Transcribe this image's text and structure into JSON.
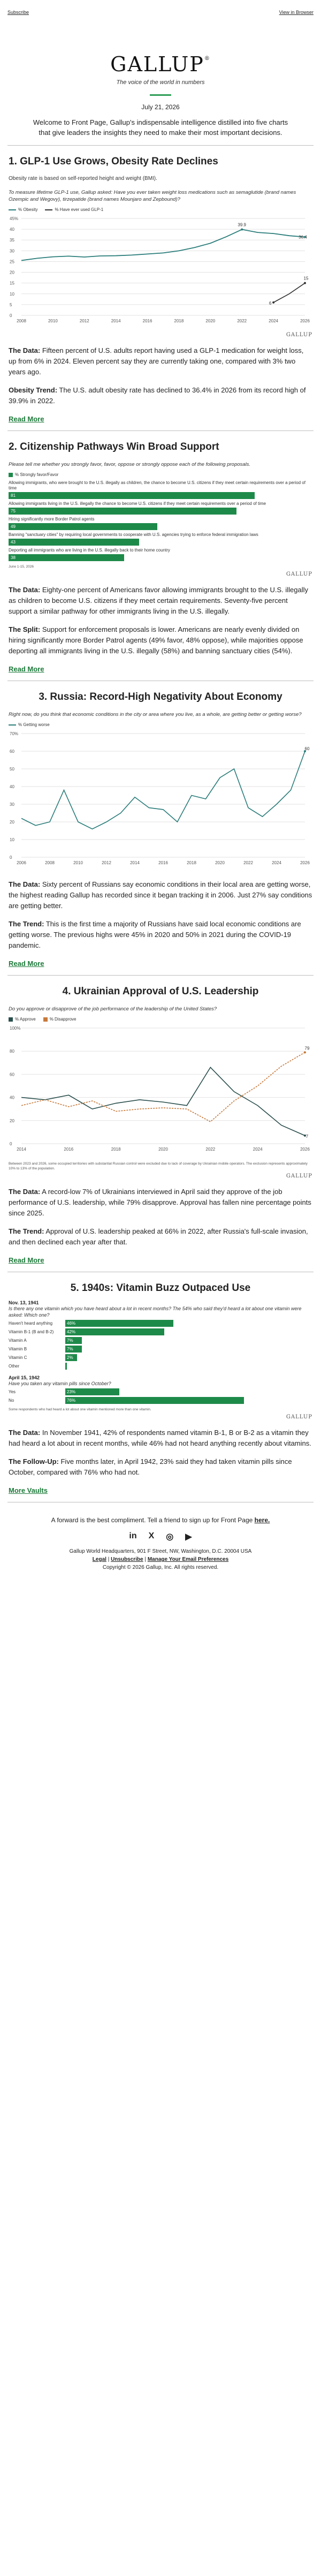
{
  "topbar": {
    "subscribe": "Subscribe",
    "view_browser": "View in Browser"
  },
  "masthead": {
    "logo": "GALLUP",
    "logo_mark": "®",
    "tagline": "The voice of the world in numbers"
  },
  "date": "July 21, 2026",
  "intro": "Welcome to Front Page, Gallup's indispensable intelligence distilled into five charts that give leaders the insights they need to make their most important decisions.",
  "s1": {
    "title": "1. GLP-1 Use Grows, Obesity Rate Declines",
    "subtitle": "Obesity rate is based on self-reported height and weight (BMI).",
    "question": "To measure lifetime GLP-1 use, Gallup asked: Have you ever taken weight loss medications such as semaglutide (brand names Ozempic and Wegovy), tirzepatide (brand names Mounjaro and Zepbound)?",
    "legend": [
      "% Obesity",
      "% Have ever used GLP-1"
    ],
    "para1_lead": "The Data:",
    "para1": " Fifteen percent of U.S. adults report having used a GLP-1 medication for weight loss, up from 6% in 2024. Eleven percent say they are currently taking one, compared with 3% two years ago.",
    "para2_lead": "Obesity Trend:",
    "para2": " The U.S. adult obesity rate has declined to 36.4% in 2026 from its record high of 39.9% in 2022.",
    "readmore": "Read More"
  },
  "s2": {
    "title": "2. Citizenship Pathways Win Broad Support",
    "question": "Please tell me whether you strongly favor, favor, oppose or strongly oppose each of the following proposals.",
    "legend": "% Strongly favor/Favor",
    "items": [
      {
        "label": "Allowing immigrants, who were brought to the U.S. illegally as children, the chance to become U.S. citizens if they meet certain requirements over a period of time",
        "value": "81",
        "frac": 0.81
      },
      {
        "label": "Allowing immigrants living in the U.S. illegally the chance to become U.S. citizens if they meet certain requirements over a period of time",
        "value": "75",
        "frac": 0.75
      },
      {
        "label": "Hiring significantly more Border Patrol agents",
        "value": "49",
        "frac": 0.49
      },
      {
        "label": "Banning \"sanctuary cities\" by requiring local governments to cooperate with U.S. agencies trying to enforce federal immigration laws",
        "value": "43",
        "frac": 0.43
      },
      {
        "label": "Deporting all immigrants who are living in the U.S. illegally back to their home country",
        "value": "38",
        "frac": 0.38
      }
    ],
    "source": "June 1-15, 2026",
    "para1_lead": "The Data:",
    "para1": " Eighty-one percent of Americans favor allowing immigrants brought to the U.S. illegally as children to become U.S. citizens if they meet certain requirements. Seventy-five percent support a similar pathway for other immigrants living in the U.S. illegally.",
    "para2_lead": "The Split:",
    "para2": " Support for enforcement proposals is lower. Americans are nearly evenly divided on hiring significantly more Border Patrol agents (49% favor, 48% oppose), while majorities oppose deporting all immigrants living in the U.S. illegally (58%) and banning sanctuary cities (54%).",
    "readmore": "Read More"
  },
  "s3": {
    "title": "3. Russia: Record-High Negativity About Economy",
    "question": "Right now, do you think that economic conditions in the city or area where you live, as a whole, are getting better or getting worse?",
    "legend": "% Getting worse",
    "para1_lead": "The Data:",
    "para1": " Sixty percent of Russians say economic conditions in their local area are getting worse, the highest reading Gallup has recorded since it began tracking it in 2006. Just 27% say conditions are getting better.",
    "para2_lead": "The Trend:",
    "para2": " This is the first time a majority of Russians have said local economic conditions are getting worse. The previous highs were 45% in 2020 and 50% in 2021 during the COVID-19 pandemic.",
    "readmore": "Read More"
  },
  "s4": {
    "title": "4. Ukrainian Approval of U.S. Leadership",
    "question": "Do you approve or disapprove of the job performance of the leadership of the United States?",
    "legend": [
      "% Approve",
      "% Disapprove"
    ],
    "footnote": "Between 2023 and 2026, some occupied territories with substantial Russian control were excluded due to lack of coverage by Ukrainian mobile operators. The exclusion represents approximately 10% to 13% of the population.",
    "para1_lead": "The Data:",
    "para1": " A record-low 7% of Ukrainians interviewed in April said they approve of the job performance of U.S. leadership, while 79% disapprove. Approval has fallen nine percentage points since 2025.",
    "para2_lead": "The Trend:",
    "para2": " Approval of U.S. leadership peaked at 66% in 2022, after Russia's full-scale invasion, and then declined each year after that.",
    "readmore": "Read More"
  },
  "s5": {
    "title": "5. 1940s: Vitamin Buzz Outpaced Use",
    "poll1_date": "Nov. 13, 1941",
    "poll1_q": "Is there any one vitamin which you have heard about a lot in recent months? The 54% who said they'd heard a lot about one vitamin were asked: Which one?",
    "poll1": [
      {
        "label": "Haven't heard anything",
        "value": "46%",
        "frac": 0.46
      },
      {
        "label": "Vitamin B-1 (B and B-2)",
        "value": "42%",
        "frac": 0.42
      },
      {
        "label": "Vitamin A",
        "value": "7%",
        "frac": 0.07
      },
      {
        "label": "Vitamin B",
        "value": "7%",
        "frac": 0.07
      },
      {
        "label": "Vitamin C",
        "value": "2%",
        "frac": 0.02
      },
      {
        "label": "Other",
        "value": "",
        "frac": 0.0
      }
    ],
    "poll2_date": "April 15, 1942",
    "poll2_q": "Have you taken any vitamin pills since October?",
    "poll2": [
      {
        "label": "Yes",
        "value": "23%",
        "frac": 0.23
      },
      {
        "label": "No",
        "value": "76%",
        "frac": 0.76
      }
    ],
    "footnote": "Some respondents who had heard a lot about one vitamin mentioned more than one vitamin.",
    "para1_lead": "The Data:",
    "para1": " In November 1941, 42% of respondents named vitamin B-1, B or B-2 as a vitamin they had heard a lot about in recent months, while 46% had not heard anything recently about vitamins.",
    "para2_lead": "The Follow-Up:",
    "para2": " Five months later, in April 1942, 23% said they had taken vitamin pills since October, compared with 76% who had not.",
    "readmore": "More Vaults"
  },
  "footer": {
    "share_text": "A forward is the best compliment. Tell a friend to sign up for Front Page ",
    "share_link": "here.",
    "social": [
      "in",
      "X",
      "◎",
      "▶"
    ],
    "address": "Gallup World Headquarters, 901 F Street, NW, Washington, D.C. 20004 USA",
    "legal": "Legal",
    "unsubscribe": "Unsubscribe",
    "manage": "Manage Your Email Preferences",
    "copyright": "Copyright © 2026 Gallup, Inc. All rights reserved."
  },
  "brand": {
    "green": "#1e8a4a",
    "teal": "#2a7d7a",
    "orange": "#c7793a"
  },
  "chart_data": [
    {
      "type": "line",
      "x": [
        2008,
        2009,
        2010,
        2011,
        2012,
        2013,
        2014,
        2015,
        2016,
        2017,
        2018,
        2019,
        2020,
        2021,
        2022,
        2023,
        2024,
        2025,
        2026
      ],
      "series": [
        {
          "name": "% Obesity",
          "values": [
            25.5,
            26.5,
            27.2,
            27.5,
            27.1,
            27.6,
            27.7,
            28.0,
            28.5,
            29.0,
            30.0,
            31.5,
            33.5,
            36.5,
            39.9,
            38.5,
            38.0,
            37.0,
            36.4
          ]
        },
        {
          "name": "% Have ever used GLP-1",
          "values": [
            null,
            null,
            null,
            null,
            null,
            null,
            null,
            null,
            null,
            null,
            null,
            null,
            null,
            null,
            null,
            null,
            6,
            10,
            15
          ]
        }
      ],
      "labels": [
        "39.9",
        "36.4",
        "6",
        "15"
      ],
      "yticks": [
        0,
        5,
        10,
        15,
        20,
        25,
        30,
        35,
        40,
        45
      ],
      "ylim": [
        0,
        45
      ],
      "xticks": [
        "2008",
        "2010",
        "2012",
        "2014",
        "2016",
        "2018",
        "2020",
        "2022",
        "2024",
        "2026"
      ],
      "y_suffix": "%"
    },
    {
      "type": "line",
      "x": [
        2006,
        2007,
        2008,
        2009,
        2010,
        2011,
        2012,
        2013,
        2014,
        2015,
        2016,
        2017,
        2018,
        2019,
        2020,
        2021,
        2022,
        2023,
        2024,
        2025,
        2026
      ],
      "series": [
        {
          "name": "% Getting worse",
          "values": [
            22,
            18,
            20,
            38,
            20,
            16,
            20,
            25,
            34,
            28,
            27,
            20,
            35,
            33,
            45,
            50,
            28,
            23,
            30,
            38,
            60
          ]
        }
      ],
      "labels": [
        "60"
      ],
      "yticks": [
        0,
        10,
        20,
        30,
        40,
        50,
        60,
        70
      ],
      "ylim": [
        0,
        70
      ],
      "xticks": [
        "2006",
        "2008",
        "2010",
        "2012",
        "2014",
        "2016",
        "2018",
        "2020",
        "2022",
        "2024",
        "2026"
      ],
      "y_suffix": "%"
    },
    {
      "type": "line",
      "x": [
        2014,
        2015,
        2016,
        2017,
        2018,
        2019,
        2020,
        2021,
        2022,
        2023,
        2024,
        2025,
        2026
      ],
      "series": [
        {
          "name": "% Approve",
          "values": [
            40,
            38,
            42,
            30,
            35,
            38,
            36,
            33,
            66,
            45,
            33,
            16,
            7
          ]
        },
        {
          "name": "% Disapprove",
          "values": [
            33,
            38,
            32,
            37,
            28,
            30,
            31,
            30,
            19,
            37,
            50,
            67,
            79
          ]
        }
      ],
      "labels": [
        "79",
        "7"
      ],
      "yticks": [
        0,
        20,
        40,
        60,
        80,
        100
      ],
      "ylim": [
        0,
        100
      ],
      "xticks": [
        "2014",
        "2016",
        "2018",
        "2020",
        "2022",
        "2024",
        "2026"
      ],
      "y_suffix": "%"
    }
  ]
}
